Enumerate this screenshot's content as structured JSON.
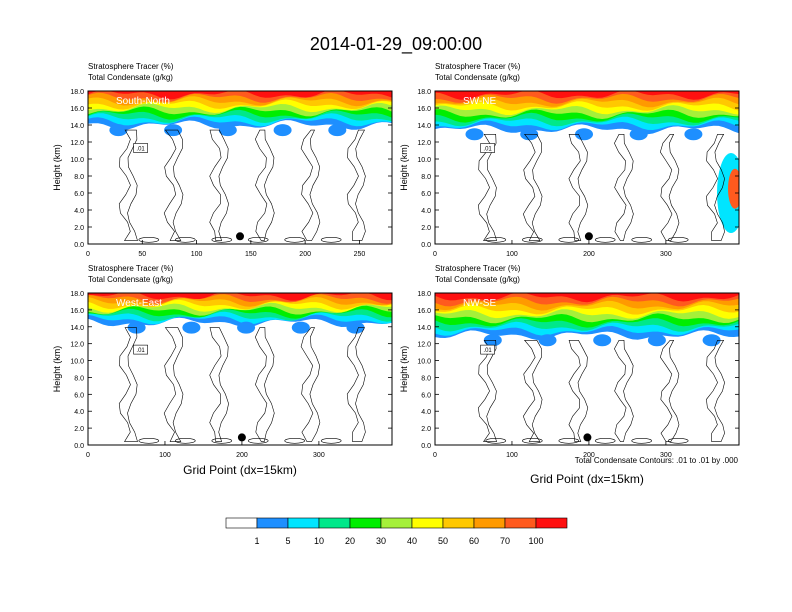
{
  "title": "2014-01-29_09:00:00",
  "header_left": "Stratosphere Tracer   (%)",
  "header_left2": "Total Condensate   (g/kg)",
  "ylabel": "Height (km)",
  "xlabel": "Grid Point (dx=15km)",
  "contour_note": "Total Condensate Contours: .01 to .01 by .000",
  "y_ticks": [
    "0.0",
    "2.0",
    "4.0",
    "6.0",
    "8.0",
    "10.0",
    "12.0",
    "14.0",
    "16.0",
    "18.0"
  ],
  "colorbar": {
    "labels": [
      "1",
      "5",
      "10",
      "20",
      "30",
      "40",
      "50",
      "60",
      "70",
      "100"
    ],
    "colors": [
      "#ffffff",
      "#1e8fff",
      "#00e5ff",
      "#00e88a",
      "#00ee00",
      "#a5f03a",
      "#ffff00",
      "#ffc800",
      "#ff9a00",
      "#ff5a1e",
      "#ff1010"
    ]
  },
  "panels": [
    {
      "name": "South-North",
      "x_ticks": [
        "0",
        "50",
        "100",
        "150",
        "200",
        "250"
      ],
      "xmax": 280,
      "contour_label": ".01",
      "dot_x": 140
    },
    {
      "name": "SW-NE",
      "x_ticks": [
        "0",
        "100",
        "200",
        "300"
      ],
      "xmax": 395,
      "contour_label": ".01",
      "dot_x": 200
    },
    {
      "name": "West-East",
      "x_ticks": [
        "0",
        "100",
        "200",
        "300"
      ],
      "xmax": 395,
      "contour_label": ".01",
      "dot_x": 200
    },
    {
      "name": "NW-SE",
      "x_ticks": [
        "0",
        "100",
        "200",
        "300"
      ],
      "xmax": 395,
      "contour_label": ".01",
      "dot_x": 198
    }
  ],
  "chart_data": {
    "type": "heatmap",
    "title": "2014-01-29_09:00:00",
    "ylabel": "Height (km)",
    "xlabel": "Grid Point (dx=15km)",
    "ylim": [
      0,
      18
    ],
    "color_levels": [
      1,
      5,
      10,
      20,
      30,
      40,
      50,
      60,
      70,
      100
    ],
    "panels": [
      {
        "name": "South-North",
        "xlim": [
          0,
          280
        ],
        "tracer_base_km": 14.0
      },
      {
        "name": "SW-NE",
        "xlim": [
          0,
          395
        ],
        "tracer_base_km": 13.5
      },
      {
        "name": "West-East",
        "xlim": [
          0,
          395
        ],
        "tracer_base_km": 14.5
      },
      {
        "name": "NW-SE",
        "xlim": [
          0,
          395
        ],
        "tracer_base_km": 13.0
      }
    ]
  }
}
